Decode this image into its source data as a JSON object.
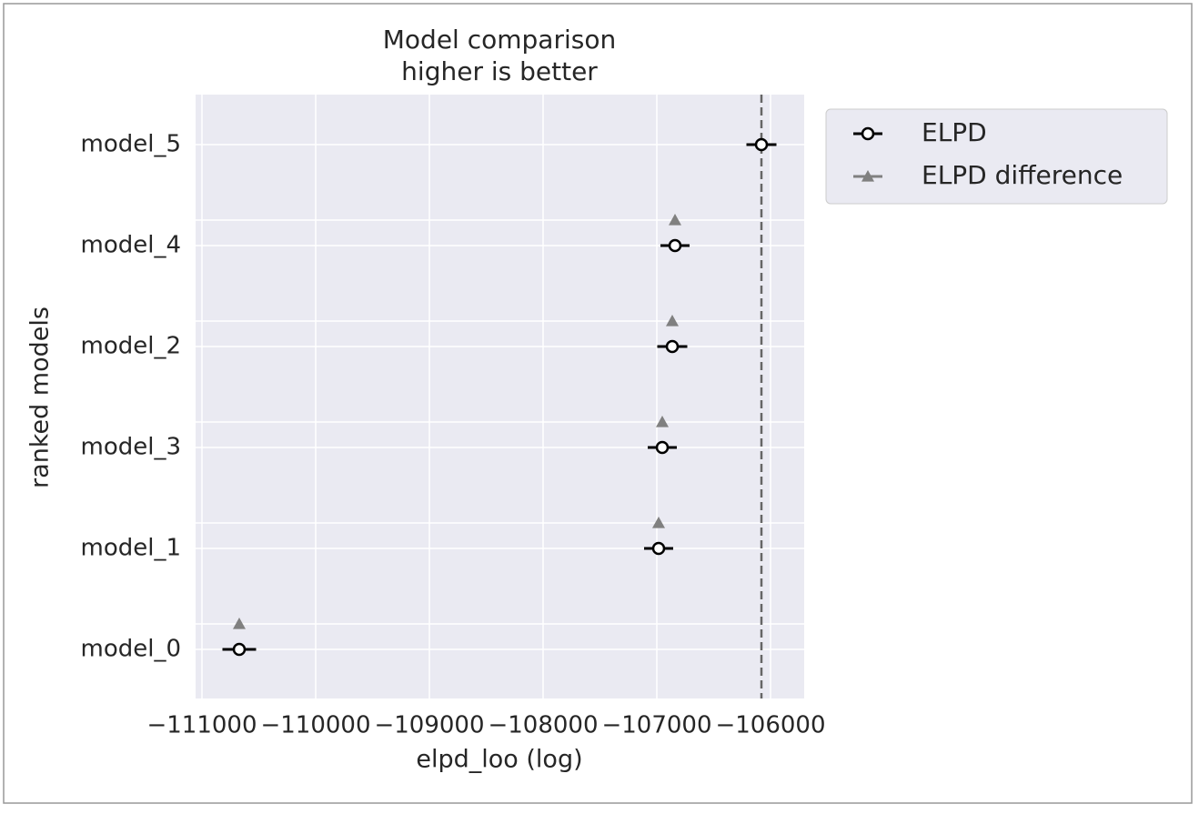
{
  "chart_data": {
    "type": "compare",
    "title": "Model comparison",
    "subtitle": "higher is better",
    "x_label": "elpd_loo (log)",
    "y_label": "ranked models",
    "categories": [
      "model_5",
      "model_4",
      "model_2",
      "model_3",
      "model_1",
      "model_0"
    ],
    "series": [
      {
        "name": "ELPD",
        "color": "#000000",
        "marker": "open-circle",
        "values": [
          -106080,
          -106840,
          -106864,
          -106952,
          -106984,
          -110672
        ],
        "errors": [
          132,
          128,
          132,
          128,
          128,
          148
        ]
      },
      {
        "name": "ELPD difference",
        "color": "#808080",
        "marker": "triangle",
        "values": [
          null,
          -106840,
          -106864,
          -106952,
          -106984,
          -110672
        ]
      }
    ],
    "reference_line": -106080,
    "xlim": [
      -111056,
      -105704
    ],
    "xticks": [
      {
        "value": -111000,
        "label": "−111000"
      },
      {
        "value": -110000,
        "label": "−110000"
      },
      {
        "value": -109000,
        "label": "−109000"
      },
      {
        "value": -108000,
        "label": "−108000"
      },
      {
        "value": -107000,
        "label": "−107000"
      },
      {
        "value": -106000,
        "label": "−106000"
      }
    ],
    "grid": true,
    "legend": "outside-upper-right"
  }
}
